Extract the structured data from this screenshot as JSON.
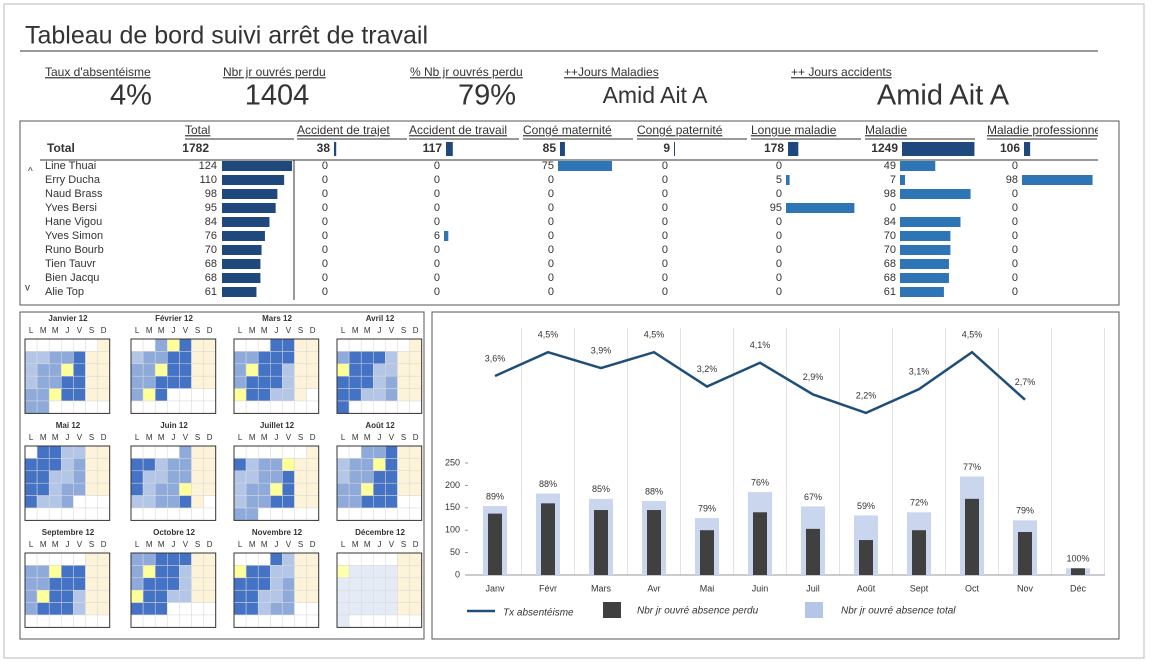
{
  "header": {
    "title": "Tableau de bord suivi arrêt de travail"
  },
  "kpis": [
    {
      "label": "Taux d'absentéisme",
      "value": "4%"
    },
    {
      "label": "Nbr jr ouvrés perdu",
      "value": "1404"
    },
    {
      "label": "% Nb jr ouvrés perdu",
      "value": "79%"
    },
    {
      "label": "++Jours Maladies",
      "value": "Amid Ait A"
    },
    {
      "label": "++ Jours accidents",
      "value": "Amid Ait A"
    }
  ],
  "table": {
    "total_header": "Total",
    "columns": [
      "Accident de trajet",
      "Accident de travail",
      "Congé maternité",
      "Congé paternité",
      "Longue maladie",
      "Maladie",
      "Maladie professionnelle"
    ],
    "totals": {
      "label": "Total",
      "total": 1782,
      "values": [
        38,
        117,
        85,
        9,
        178,
        1249,
        106
      ]
    },
    "rows": [
      {
        "name": "Line Thuai",
        "total": 124,
        "values": [
          0,
          0,
          75,
          0,
          0,
          49,
          0
        ]
      },
      {
        "name": "Erry Ducha",
        "total": 110,
        "values": [
          0,
          0,
          0,
          0,
          5,
          7,
          98
        ]
      },
      {
        "name": "Naud Brass",
        "total": 98,
        "values": [
          0,
          0,
          0,
          0,
          0,
          98,
          0
        ]
      },
      {
        "name": "Yves Bersi",
        "total": 95,
        "values": [
          0,
          0,
          0,
          0,
          95,
          0,
          0
        ]
      },
      {
        "name": "Hane Vigou",
        "total": 84,
        "values": [
          0,
          0,
          0,
          0,
          0,
          84,
          0
        ]
      },
      {
        "name": "Yves Simon",
        "total": 76,
        "values": [
          0,
          6,
          0,
          0,
          0,
          70,
          0
        ]
      },
      {
        "name": "Runo Bourb",
        "total": 70,
        "values": [
          0,
          0,
          0,
          0,
          0,
          70,
          0
        ]
      },
      {
        "name": "Tien Tauvr",
        "total": 68,
        "values": [
          0,
          0,
          0,
          0,
          0,
          68,
          0
        ]
      },
      {
        "name": "Bien Jacqu",
        "total": 68,
        "values": [
          0,
          0,
          0,
          0,
          0,
          68,
          0
        ]
      },
      {
        "name": "Alie Top",
        "total": 61,
        "values": [
          0,
          0,
          0,
          0,
          0,
          61,
          0
        ]
      }
    ]
  },
  "calendar": {
    "weekdays": [
      "L",
      "M",
      "M",
      "J",
      "V",
      "S",
      "D"
    ],
    "months": [
      "Janvier 12",
      "Février 12",
      "Mars 12",
      "Avril 12",
      "Mai 12",
      "Juin 12",
      "Juillet 12",
      "Août 12",
      "Septembre 12",
      "Octobre 12",
      "Novembre 12",
      "Décembre 12"
    ]
  },
  "chart_data": {
    "type": "bar",
    "categories": [
      "Janv",
      "Févr",
      "Mars",
      "Avr",
      "Mai",
      "Juin",
      "Juil",
      "Août",
      "Sept",
      "Oct",
      "Nov",
      "Déc"
    ],
    "ylim": [
      0,
      250
    ],
    "yticks": [
      0,
      50,
      100,
      150,
      200,
      250
    ],
    "y2lim": [
      0,
      5
    ],
    "series": [
      {
        "name": "Tx absentéisme",
        "type": "line",
        "axis": "y2",
        "color": "#1f4e79",
        "values": [
          3.6,
          4.5,
          3.9,
          4.5,
          3.2,
          4.1,
          2.9,
          2.2,
          3.1,
          4.5,
          2.7,
          null
        ],
        "value_labels": [
          "3,6%",
          "4,5%",
          "3,9%",
          "4,5%",
          "3,2%",
          "4,1%",
          "2,9%",
          "2,2%",
          "3,1%",
          "4,5%",
          "2,7%",
          null
        ]
      },
      {
        "name": "Nbr jr ouvré absence perdu",
        "color": "#404040",
        "values": [
          137,
          160,
          145,
          145,
          100,
          140,
          103,
          78,
          100,
          170,
          96,
          15
        ]
      },
      {
        "name": "Nbr jr ouvré absence total",
        "color": "#c9d6ee",
        "values": [
          154,
          182,
          170,
          165,
          127,
          185,
          153,
          133,
          140,
          220,
          122,
          15
        ]
      }
    ],
    "ratio_values": [
      89,
      88,
      85,
      88,
      79,
      76,
      67,
      59,
      72,
      77,
      79,
      100
    ],
    "ratio_labels": [
      "89%",
      "88%",
      "85%",
      "88%",
      "79%",
      "76%",
      "67%",
      "59%",
      "72%",
      "77%",
      "79%",
      "100%"
    ]
  }
}
